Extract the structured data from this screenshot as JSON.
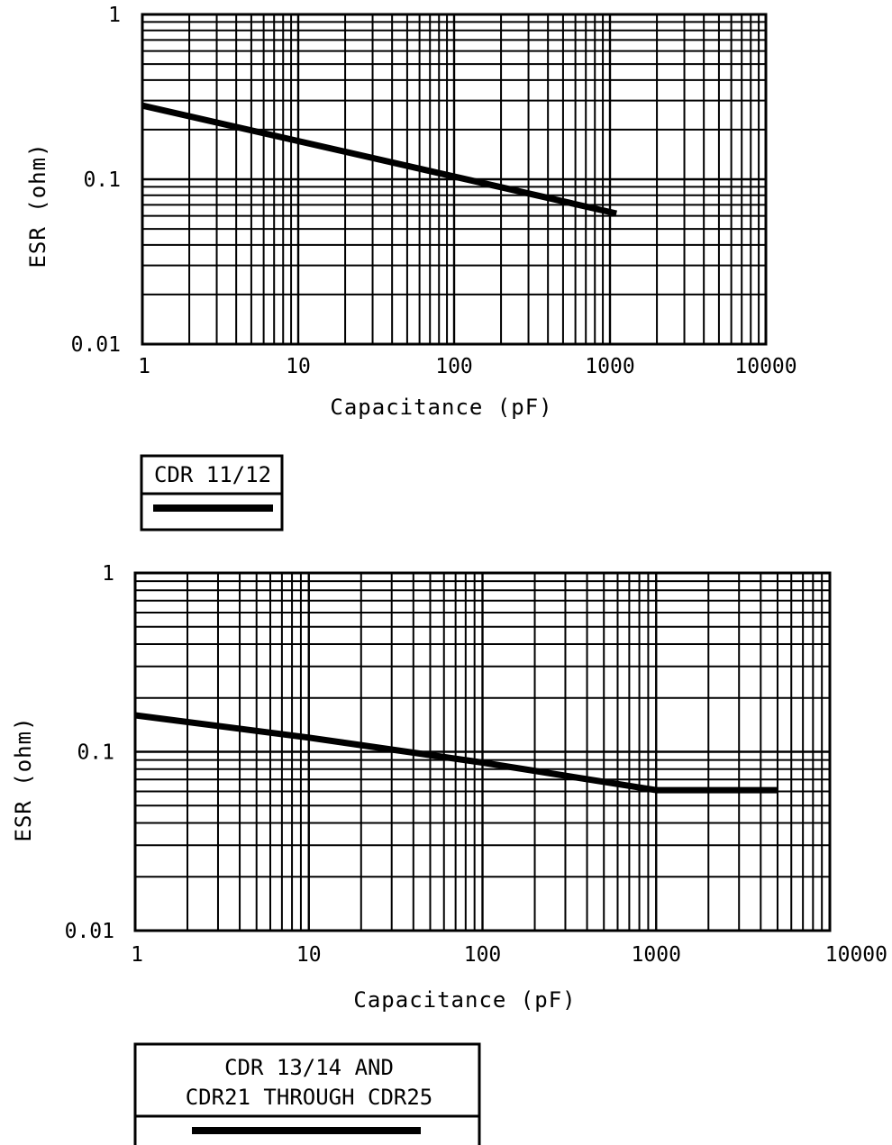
{
  "chart_data": [
    {
      "type": "line",
      "xlabel": "Capacitance (pF)",
      "ylabel": "ESR (ohm)",
      "xscale": "log",
      "yscale": "log",
      "xlim": [
        1,
        10000
      ],
      "ylim": [
        0.01,
        1
      ],
      "grid": true,
      "x_tick_labels": [
        "1",
        "10",
        "100",
        "1000",
        "10000"
      ],
      "y_tick_labels": [
        "1",
        "0.1",
        "0.01"
      ],
      "series": [
        {
          "name": "CDR 11/12",
          "x": [
            1,
            1100
          ],
          "y": [
            0.28,
            0.062
          ]
        }
      ],
      "legend": {
        "position": "below",
        "lines": [
          "CDR 11/12"
        ]
      }
    },
    {
      "type": "line",
      "xlabel": "Capacitance (pF)",
      "ylabel": "ESR (ohm)",
      "xscale": "log",
      "yscale": "log",
      "xlim": [
        1,
        10000
      ],
      "ylim": [
        0.01,
        1
      ],
      "grid": true,
      "x_tick_labels": [
        "1",
        "10",
        "100",
        "1000",
        "10000"
      ],
      "y_tick_labels": [
        "1",
        "0.1",
        "0.01"
      ],
      "series": [
        {
          "name": "CDR 13/14 AND CDR21 THROUGH CDR25",
          "x": [
            1,
            10,
            100,
            1000,
            5000
          ],
          "y": [
            0.16,
            0.12,
            0.087,
            0.061,
            0.061
          ]
        }
      ],
      "legend": {
        "position": "below",
        "lines": [
          "CDR 13/14 AND",
          "CDR21 THROUGH CDR25"
        ]
      }
    }
  ]
}
